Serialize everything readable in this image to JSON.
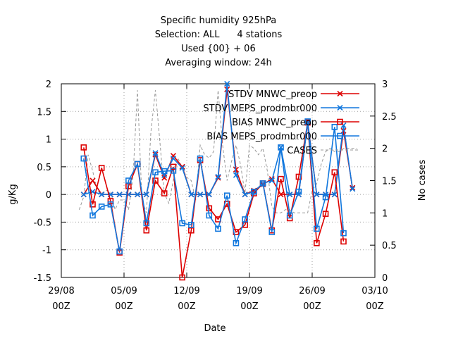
{
  "chart_data": {
    "type": "line",
    "title_lines": [
      "Specific humidity 925hPa",
      "Selection: ALL      4 stations",
      "Used {00} + 06",
      "Averaging window: 24h"
    ],
    "xlabel": "Date",
    "ylabel": "g/Kg",
    "y2label": "No cases",
    "ylim": [
      -1.5,
      2
    ],
    "y2lim": [
      0,
      3
    ],
    "yticks": [
      "-1.5",
      "-1",
      "-0.5",
      "0",
      "0.5",
      "1",
      "1.5",
      "2"
    ],
    "y2ticks": [
      "0",
      "0.5",
      "1",
      "1.5",
      "2",
      "2.5",
      "3"
    ],
    "xlim": [
      "2016-08-29 00Z",
      "2016-10-03 00Z"
    ],
    "xticks": [
      {
        "date": "29/08",
        "hour": "00Z"
      },
      {
        "date": "05/09",
        "hour": "00Z"
      },
      {
        "date": "12/09",
        "hour": "00Z"
      },
      {
        "date": "19/09",
        "hour": "00Z"
      },
      {
        "date": "26/09",
        "hour": "00Z"
      },
      {
        "date": "03/10",
        "hour": "00Z"
      }
    ],
    "grid": true,
    "legend_position": "top-right",
    "x_days": [
      2.5,
      3.5,
      4.5,
      5.5,
      6.5,
      7.5,
      8.5,
      9.5,
      10.5,
      11.5,
      12.5,
      13.5,
      14.5,
      15.5,
      16.5,
      17.5,
      18.5,
      19.5,
      20.5,
      21.5,
      22.5,
      23.5,
      24.5,
      25.5,
      26.5,
      27.5,
      28.5,
      29.5,
      30.5,
      31.5,
      32.5
    ],
    "series": [
      {
        "name": "STDV MNWC_preop",
        "color": "#dd0000",
        "marker": "x",
        "axis": "y",
        "values": [
          0,
          0.25,
          0,
          0,
          0,
          0,
          0,
          0,
          0.72,
          0.3,
          0.7,
          0.5,
          0,
          0,
          0,
          0.3,
          1.9,
          0.45,
          0,
          0.07,
          0.18,
          0.28,
          0,
          0,
          0,
          1.32,
          0,
          0,
          0,
          1.15,
          0.12
        ]
      },
      {
        "name": "STDV MEPS_prodmbr000",
        "color": "#1177dd",
        "marker": "x",
        "axis": "y",
        "values": [
          0,
          0.05,
          0,
          0,
          0,
          0,
          0,
          0,
          0.75,
          0.35,
          0.65,
          0.48,
          0,
          0,
          0,
          0.32,
          2.0,
          0.35,
          0,
          0.05,
          0.2,
          0.25,
          0.85,
          0,
          0,
          1.3,
          0,
          0,
          0,
          1.25,
          0.1
        ]
      },
      {
        "name": "BIAS MNWC_preop",
        "color": "#dd0000",
        "marker": "square",
        "axis": "y",
        "values": [
          0.85,
          -0.18,
          0.48,
          -0.12,
          -1.05,
          0.15,
          0.55,
          -0.65,
          0.25,
          0.02,
          0.5,
          -1.5,
          -0.65,
          0.62,
          -0.25,
          -0.45,
          -0.17,
          -0.68,
          -0.55,
          0.02,
          0.2,
          -0.65,
          0.28,
          -0.43,
          0.32,
          1.3,
          -0.88,
          -0.35,
          0.4,
          -0.85,
          null
        ]
      },
      {
        "name": "BIAS MEPS_prodmbr000",
        "color": "#1177dd",
        "marker": "square",
        "axis": "y",
        "values": [
          0.65,
          -0.38,
          -0.22,
          -0.18,
          -1.03,
          0.25,
          0.55,
          -0.52,
          0.4,
          0.42,
          0.43,
          -0.52,
          -0.55,
          0.65,
          -0.38,
          -0.62,
          -0.02,
          -0.88,
          -0.45,
          0.05,
          0.2,
          -0.68,
          0.85,
          -0.38,
          0.05,
          1.32,
          -0.62,
          -0.05,
          1.22,
          -0.7,
          null
        ]
      },
      {
        "name": "CASES",
        "color": "#999999",
        "dash": "4,3",
        "axis": "y2",
        "x": [
          2.0,
          2.5,
          3.0,
          3.5,
          4.0,
          4.5,
          5.0,
          5.5,
          6.0,
          6.5,
          7.0,
          7.5,
          8.0,
          8.5,
          9.0,
          9.5,
          10.0,
          10.5,
          11.0,
          11.5,
          12.0,
          12.5,
          13.0,
          13.5,
          14.0,
          14.5,
          15.0,
          15.5,
          16.0,
          16.5,
          17.0,
          17.5,
          18.0,
          18.5,
          19.0,
          19.5,
          20.0,
          20.5,
          21.0,
          21.5,
          22.0,
          22.5,
          23.0,
          23.5,
          24.0,
          24.5,
          25.0,
          25.5,
          26.0,
          26.5,
          27.0,
          27.5,
          28.0,
          28.5,
          29.0,
          29.5,
          30.0,
          30.5,
          31.0,
          31.5,
          32.0,
          32.5,
          33.0
        ],
        "values": [
          1.05,
          1.25,
          1.9,
          1.65,
          1.35,
          1.3,
          1.35,
          1.33,
          1.05,
          1.2,
          1.2,
          1.05,
          1.55,
          2.9,
          1.2,
          1.0,
          2.25,
          2.9,
          2.1,
          1.3,
          1.15,
          1.5,
          1.85,
          1.7,
          1.55,
          1.5,
          1.2,
          2.05,
          1.9,
          1.85,
          1.95,
          2.9,
          2.05,
          1.5,
          1.8,
          2.05,
          1.75,
          1.3,
          2.05,
          2.0,
          1.9,
          2.0,
          1.65,
          1.1,
          1.0,
          1.0,
          1.05,
          1.05,
          1.0,
          1.0,
          1.0,
          1.0,
          1.35,
          1.45,
          1.75,
          1.95,
          2.0,
          1.95,
          1.95,
          2.0,
          2.0,
          2.0,
          2.0
        ]
      }
    ]
  }
}
